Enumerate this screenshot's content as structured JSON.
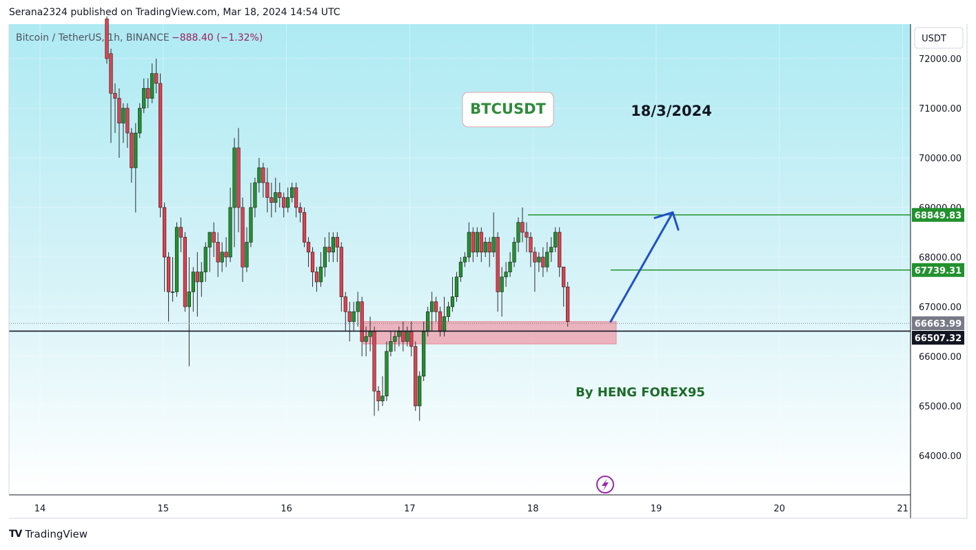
{
  "header": {
    "published": "Serana2324 published on TradingView.com, Mar 18, 2024 14:54 UTC"
  },
  "symbol_line": {
    "symbol": "Bitcoin / TetherUS, 1h, BINANCE",
    "change": "−888.40 (−1.32%)"
  },
  "currency_button": "USDT",
  "annotations": {
    "box_label": "BTCUSDT",
    "date_label": "18/3/2024",
    "author": "By HENG FOREX95"
  },
  "price_tags": [
    {
      "value": 68849.83,
      "label": "68849.83",
      "color": "#22912e"
    },
    {
      "value": 67739.31,
      "label": "67739.31",
      "color": "#22912e"
    },
    {
      "value": 66663.99,
      "label": "66663.99",
      "color": "#787b86"
    },
    {
      "value": 66507.32,
      "label": "66507.32",
      "color": "#131722"
    }
  ],
  "footer": {
    "brand": "TradingView",
    "logo": "TV"
  },
  "icons": {
    "lightning": "lightning-icon",
    "logo": "tradingview-logo-icon"
  },
  "colors": {
    "up": "#22912e",
    "down": "#e0404f",
    "zone": "#f47c8c",
    "arrow": "#1f4fcc",
    "support": "#131722"
  },
  "chart_data": {
    "type": "candlestick",
    "timeframe": "1h",
    "x_axis": {
      "labels": [
        "14",
        "15",
        "16",
        "17",
        "18",
        "19",
        "20",
        "21"
      ]
    },
    "y_axis": {
      "labels": [
        "72000.00",
        "71000.00",
        "70000.00",
        "69000.00",
        "68000.00",
        "67000.00",
        "66000.00",
        "65000.00",
        "64000.00"
      ],
      "range": [
        63200,
        72700
      ]
    },
    "candles": [
      [
        72800,
        72000,
        72850,
        71900
      ],
      [
        72100,
        71300,
        72200,
        70300
      ],
      [
        71300,
        71200,
        71500,
        70500
      ],
      [
        71200,
        70700,
        71400,
        70000
      ],
      [
        70700,
        71000,
        71100,
        70300
      ],
      [
        71000,
        70500,
        71100,
        70200
      ],
      [
        70500,
        69800,
        70600,
        69500
      ],
      [
        69800,
        70500,
        70700,
        68900
      ],
      [
        70500,
        71000,
        71100,
        70400
      ],
      [
        71000,
        71400,
        71600,
        70900
      ],
      [
        71400,
        71200,
        71600,
        71000
      ],
      [
        71200,
        71700,
        71900,
        71100
      ],
      [
        71700,
        71500,
        72000,
        71300
      ],
      [
        71500,
        69000,
        71700,
        68800
      ],
      [
        69000,
        68000,
        69100,
        67300
      ],
      [
        68000,
        67300,
        68100,
        66700
      ],
      [
        67300,
        67300,
        68000,
        67100
      ],
      [
        67300,
        68600,
        68700,
        67200
      ],
      [
        68600,
        68400,
        68800,
        68100
      ],
      [
        68400,
        67000,
        68500,
        66900
      ],
      [
        67000,
        67300,
        68000,
        65800
      ],
      [
        67300,
        67700,
        67800,
        66900
      ],
      [
        67700,
        67500,
        68100,
        66800
      ],
      [
        67500,
        67700,
        67900,
        67200
      ],
      [
        67700,
        68200,
        68300,
        67500
      ],
      [
        68200,
        68500,
        68500,
        67700
      ],
      [
        68500,
        68300,
        68700,
        68000
      ],
      [
        68300,
        67900,
        68500,
        67600
      ],
      [
        67900,
        68100,
        68300,
        67700
      ],
      [
        68100,
        68000,
        68400,
        67800
      ],
      [
        68000,
        69000,
        69400,
        67900
      ],
      [
        69000,
        70200,
        70400,
        68200
      ],
      [
        70200,
        69000,
        70600,
        68500
      ],
      [
        69000,
        67800,
        69200,
        67500
      ],
      [
        67800,
        68300,
        68600,
        67700
      ],
      [
        68300,
        69000,
        69500,
        68200
      ],
      [
        69000,
        69500,
        69600,
        68800
      ],
      [
        69500,
        69800,
        70000,
        69300
      ],
      [
        69800,
        69500,
        69900,
        69200
      ],
      [
        69500,
        69200,
        69800,
        68900
      ],
      [
        69200,
        69100,
        69500,
        68800
      ],
      [
        69100,
        69300,
        69600,
        68900
      ],
      [
        69300,
        69200,
        69500,
        69000
      ],
      [
        69200,
        69000,
        69300,
        68800
      ],
      [
        69000,
        69200,
        69400,
        68900
      ],
      [
        69200,
        69400,
        69500,
        69100
      ],
      [
        69400,
        69000,
        69500,
        68800
      ],
      [
        69000,
        68900,
        69100,
        68700
      ],
      [
        68900,
        68300,
        69000,
        68200
      ],
      [
        68300,
        68100,
        68400,
        67800
      ],
      [
        68100,
        67700,
        68200,
        67400
      ],
      [
        67700,
        67500,
        67800,
        67300
      ],
      [
        67500,
        67800,
        68100,
        67400
      ],
      [
        67800,
        68200,
        68400,
        67600
      ],
      [
        68200,
        68100,
        68500,
        67900
      ],
      [
        68100,
        68400,
        68500,
        67900
      ],
      [
        68400,
        68200,
        68500,
        67900
      ],
      [
        68200,
        67200,
        68300,
        66900
      ],
      [
        67200,
        66900,
        67300,
        66500
      ],
      [
        66900,
        66700,
        67100,
        66300
      ],
      [
        66700,
        66900,
        67100,
        66500
      ],
      [
        66900,
        67100,
        67300,
        66600
      ],
      [
        67100,
        66300,
        67200,
        66000
      ],
      [
        66300,
        66400,
        66600,
        66000
      ],
      [
        66400,
        66500,
        66800,
        66100
      ],
      [
        66500,
        65300,
        66600,
        64800
      ],
      [
        65300,
        65100,
        65400,
        64900
      ],
      [
        65100,
        65200,
        65600,
        65000
      ],
      [
        65200,
        66100,
        66300,
        65100
      ],
      [
        66100,
        66300,
        66500,
        66000
      ],
      [
        66300,
        66400,
        66500,
        66100
      ],
      [
        66400,
        66500,
        66600,
        66200
      ],
      [
        66500,
        66300,
        66700,
        66100
      ],
      [
        66300,
        66500,
        66600,
        66200
      ],
      [
        66500,
        66200,
        66700,
        66000
      ],
      [
        66200,
        65000,
        66300,
        64900
      ],
      [
        65000,
        65600,
        65700,
        64700
      ],
      [
        65600,
        66500,
        66700,
        65500
      ],
      [
        66500,
        66900,
        67000,
        66400
      ],
      [
        66900,
        67100,
        67300,
        66500
      ],
      [
        67100,
        66900,
        67200,
        66700
      ],
      [
        66900,
        66500,
        67000,
        66400
      ],
      [
        66500,
        66800,
        67200,
        66400
      ],
      [
        66800,
        67000,
        67100,
        66700
      ],
      [
        67000,
        67200,
        67600,
        66900
      ],
      [
        67200,
        67600,
        67700,
        67100
      ],
      [
        67600,
        67900,
        68000,
        67500
      ],
      [
        67900,
        68000,
        68100,
        67800
      ],
      [
        68000,
        68500,
        68700,
        67900
      ],
      [
        68500,
        68100,
        68600,
        67900
      ],
      [
        68100,
        68500,
        68600,
        68000
      ],
      [
        68500,
        68100,
        68600,
        67900
      ],
      [
        68100,
        68300,
        68400,
        68000
      ],
      [
        68300,
        68100,
        68400,
        67800
      ],
      [
        68100,
        68400,
        68900,
        68000
      ],
      [
        68400,
        67300,
        68500,
        66900
      ],
      [
        67300,
        67600,
        67800,
        66800
      ],
      [
        67600,
        67700,
        67900,
        67400
      ],
      [
        67700,
        67900,
        68100,
        67600
      ],
      [
        67900,
        68300,
        68400,
        67800
      ],
      [
        68300,
        68700,
        68800,
        68100
      ],
      [
        68700,
        68500,
        69000,
        68300
      ],
      [
        68500,
        68400,
        68700,
        68100
      ],
      [
        68400,
        68100,
        68500,
        67800
      ],
      [
        68100,
        67900,
        68200,
        67300
      ],
      [
        67900,
        68000,
        68100,
        67700
      ],
      [
        68000,
        67800,
        68200,
        67600
      ],
      [
        67800,
        68100,
        68300,
        67700
      ],
      [
        68100,
        68200,
        68400,
        67900
      ],
      [
        68200,
        68500,
        68600,
        68100
      ],
      [
        68500,
        67800,
        68600,
        67600
      ],
      [
        67800,
        67400,
        67800,
        67000
      ],
      [
        67400,
        66700,
        67500,
        66600
      ]
    ],
    "zone": {
      "low": 66250,
      "high": 66700
    },
    "horizontal_lines": [
      68849.83,
      67739.31,
      66507.32,
      66663.99
    ],
    "arrow": {
      "from": 66700,
      "to": 68900
    }
  }
}
